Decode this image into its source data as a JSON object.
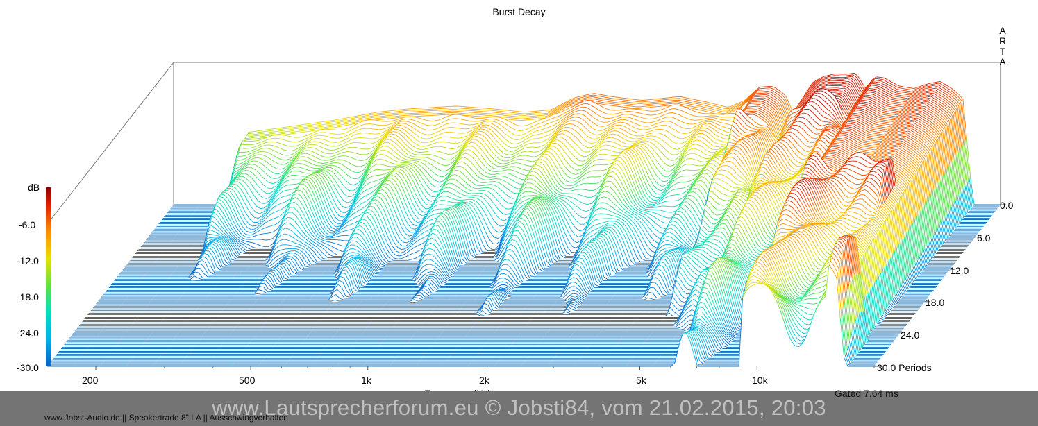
{
  "chart_data": {
    "type": "waterfall",
    "title": "Burst Decay",
    "brand": [
      "A",
      "R",
      "T",
      "A"
    ],
    "xlabel": "Frequency (Hz)",
    "x_scale": "log",
    "xlim": [
      150,
      20000
    ],
    "x_tick_labels": [
      {
        "value": 200,
        "label": "200"
      },
      {
        "value": 500,
        "label": "500"
      },
      {
        "value": 1000,
        "label": "1k"
      },
      {
        "value": 2000,
        "label": "2k"
      },
      {
        "value": 5000,
        "label": "5k"
      },
      {
        "value": 10000,
        "label": "10k"
      }
    ],
    "x_minor_ticks": [
      300,
      400,
      600,
      700,
      800,
      900,
      3000,
      4000,
      6000,
      7000,
      8000,
      9000,
      20000
    ],
    "zlabel": "dB",
    "zlim": [
      -30,
      0
    ],
    "z_tick_labels": [
      "-6.0",
      "-12.0",
      "-18.0",
      "-24.0",
      "-30.0"
    ],
    "depth_label": "Periods",
    "depth_range": [
      0,
      30
    ],
    "depth_tick_labels": [
      "0.0",
      "6.0",
      "12.0",
      "18.0",
      "24.0",
      "30.0 Periods"
    ],
    "colormap": [
      "#0060d0",
      "#00b0e8",
      "#00e0c0",
      "#60e040",
      "#e8e000",
      "#ff9000",
      "#e02000",
      "#900000"
    ],
    "front_line_color": "#1a73b8",
    "slice_count": 120,
    "first_slice_envelope": {
      "freq": [
        220,
        230,
        300,
        400,
        500,
        600,
        800,
        1000,
        1200,
        1400,
        1600,
        1800,
        2000,
        2400,
        3000,
        3500,
        4000,
        4400,
        4800,
        5200,
        5600,
        6000,
        6500,
        7000,
        7500,
        8000,
        8500,
        9000,
        9500,
        10000,
        11000,
        12000,
        13000,
        14000,
        15000,
        16000,
        17000
      ],
      "db": [
        -30,
        -14.8,
        -13.5,
        -12,
        -10.5,
        -9.8,
        -9.2,
        -9.8,
        -10.5,
        -10,
        -7.5,
        -6.5,
        -7.2,
        -8,
        -7.2,
        -8.3,
        -9.5,
        -8,
        -5.2,
        -5.0,
        -6.8,
        -12.5,
        -4.5,
        -3.0,
        -2.4,
        -2.5,
        -2.2,
        -5.5,
        -3.0,
        -3.2,
        -5.0,
        -5.5,
        -4.5,
        -4.0,
        -5.5,
        -7.5,
        -30
      ]
    },
    "decay_rules": [
      {
        "f_max": 4700,
        "zero_periods": 1.3,
        "rate": 1.9
      },
      {
        "f_max": 9000,
        "zero_periods": 4.5,
        "rate": 1.1
      },
      {
        "f_max": 15000,
        "zero_periods": 14,
        "rate": 0.85
      },
      {
        "f_max": 20000,
        "zero_periods": 25,
        "rate": 0.8
      }
    ],
    "gated": "Gated 7.64 ms"
  },
  "footer": {
    "watermark": "www.Lautsprecherforum.eu © Jobsti84, vom 21.02.2015, 20:03",
    "caption": "www.Jobst-Audio.de  ||  Speakertrade 8\" LA  ||  Ausschwingverhalten"
  }
}
